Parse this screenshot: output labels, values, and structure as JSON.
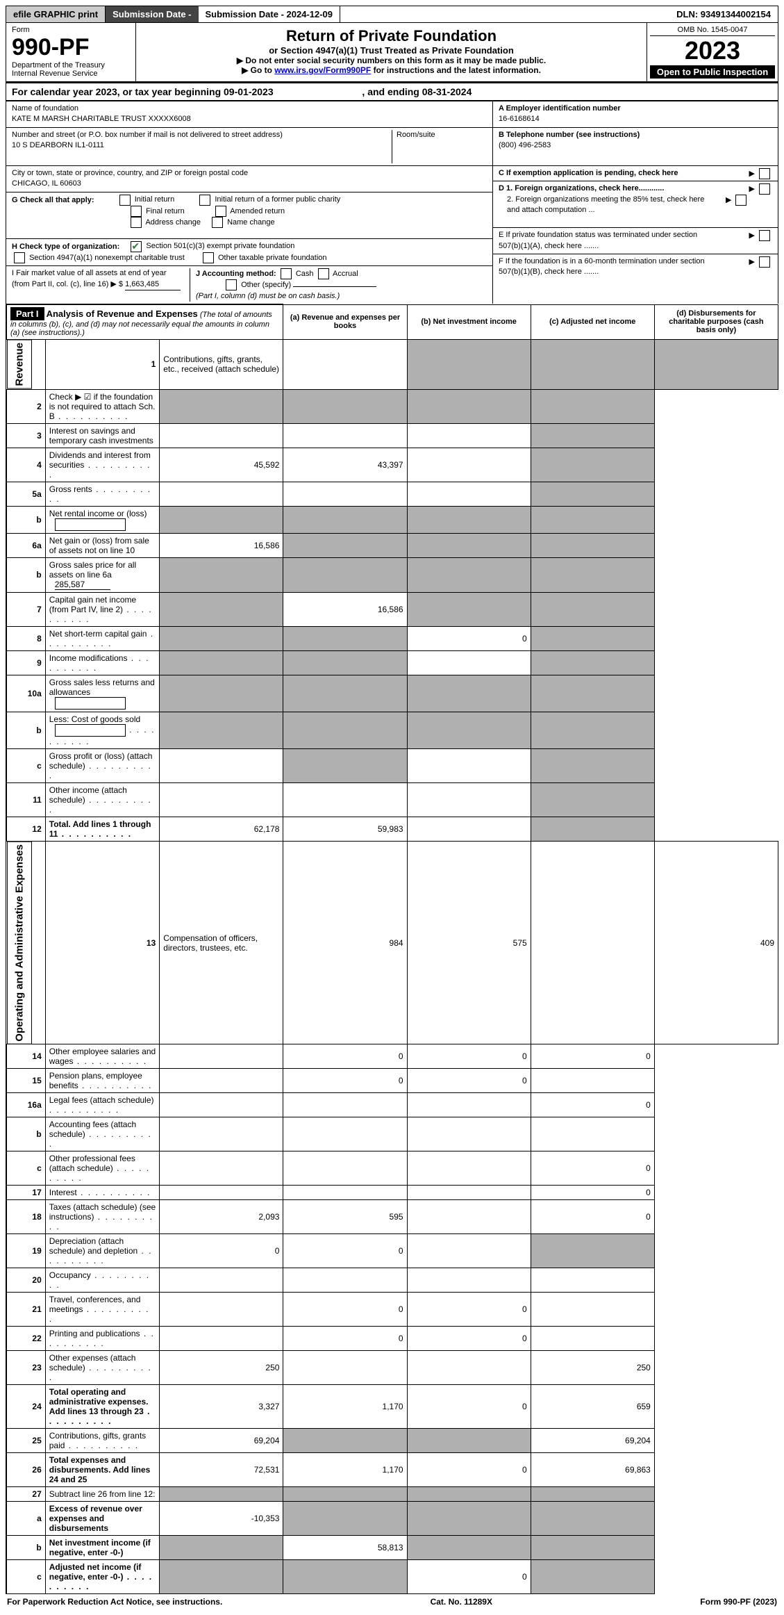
{
  "topbar": {
    "efile": "efile GRAPHIC print",
    "submission_label": "Submission Date - 2024-12-09",
    "dln": "DLN: 93491344002154"
  },
  "header": {
    "form_label": "Form",
    "form_number": "990-PF",
    "dept": "Department of the Treasury",
    "irs": "Internal Revenue Service",
    "title": "Return of Private Foundation",
    "subtitle": "or Section 4947(a)(1) Trust Treated as Private Foundation",
    "instr1": "▶ Do not enter social security numbers on this form as it may be made public.",
    "instr2_pre": "▶ Go to ",
    "instr2_link": "www.irs.gov/Form990PF",
    "instr2_post": " for instructions and the latest information.",
    "omb": "OMB No. 1545-0047",
    "year": "2023",
    "open": "Open to Public Inspection"
  },
  "year_line": {
    "pre": "For calendar year 2023, or tax year beginning 09-01-2023",
    "post": ", and ending 08-31-2024"
  },
  "foundation": {
    "name_label": "Name of foundation",
    "name": "KATE M MARSH CHARITABLE TRUST XXXXX6008",
    "addr_label": "Number and street (or P.O. box number if mail is not delivered to street address)",
    "room_label": "Room/suite",
    "addr": "10 S DEARBORN IL1-0111",
    "city_label": "City or town, state or province, country, and ZIP or foreign postal code",
    "city": "CHICAGO, IL  60603"
  },
  "box_a": {
    "label": "A Employer identification number",
    "value": "16-6168614"
  },
  "box_b": {
    "label": "B Telephone number (see instructions)",
    "value": "(800) 496-2583"
  },
  "box_c": {
    "label": "C If exemption application is pending, check here"
  },
  "box_d1": {
    "label": "D 1. Foreign organizations, check here............"
  },
  "box_d2": {
    "label": "2. Foreign organizations meeting the 85% test, check here and attach computation ..."
  },
  "box_e": {
    "label": "E  If private foundation status was terminated under section 507(b)(1)(A), check here ......."
  },
  "box_f": {
    "label": "F  If the foundation is in a 60-month termination under section 507(b)(1)(B), check here ......."
  },
  "g": {
    "label": "G Check all that apply:",
    "items": [
      "Initial return",
      "Initial return of a former public charity",
      "Final return",
      "Amended return",
      "Address change",
      "Name change"
    ]
  },
  "h": {
    "label": "H Check type of organization:",
    "opt1": "Section 501(c)(3) exempt private foundation",
    "opt2": "Section 4947(a)(1) nonexempt charitable trust",
    "opt3": "Other taxable private foundation"
  },
  "i": {
    "label": "I Fair market value of all assets at end of year (from Part II, col. (c), line 16) ▶ $",
    "value": "1,663,485"
  },
  "j": {
    "label": "J Accounting method:",
    "cash": "Cash",
    "accrual": "Accrual",
    "other": "Other (specify)",
    "note": "(Part I, column (d) must be on cash basis.)"
  },
  "part1": {
    "label": "Part I",
    "title": "Analysis of Revenue and Expenses",
    "note": "(The total of amounts in columns (b), (c), and (d) may not necessarily equal the amounts in column (a) (see instructions).)",
    "col_a": "(a)  Revenue and expenses per books",
    "col_b": "(b)  Net investment income",
    "col_c": "(c)  Adjusted net income",
    "col_d": "(d)  Disbursements for charitable purposes (cash basis only)"
  },
  "sections": {
    "revenue": "Revenue",
    "opex": "Operating and Administrative Expenses"
  },
  "rows": [
    {
      "n": "1",
      "desc": "Contributions, gifts, grants, etc., received (attach schedule)",
      "a": "",
      "b": "shade",
      "c": "shade",
      "d": "shade"
    },
    {
      "n": "2",
      "desc": "Check ▶ ☑ if the foundation is not required to attach Sch. B",
      "dots": true,
      "a": "shade",
      "b": "shade",
      "c": "shade",
      "d": "shade"
    },
    {
      "n": "3",
      "desc": "Interest on savings and temporary cash investments",
      "a": "",
      "b": "",
      "c": "",
      "d": "shade"
    },
    {
      "n": "4",
      "desc": "Dividends and interest from securities",
      "dots": true,
      "a": "45,592",
      "b": "43,397",
      "c": "",
      "d": "shade"
    },
    {
      "n": "5a",
      "desc": "Gross rents",
      "dots": true,
      "a": "",
      "b": "",
      "c": "",
      "d": "shade"
    },
    {
      "n": "b",
      "desc": "Net rental income or (loss)",
      "inline_input": true,
      "a": "shade",
      "b": "shade",
      "c": "shade",
      "d": "shade"
    },
    {
      "n": "6a",
      "desc": "Net gain or (loss) from sale of assets not on line 10",
      "a": "16,586",
      "b": "shade",
      "c": "shade",
      "d": "shade"
    },
    {
      "n": "b",
      "desc": "Gross sales price for all assets on line 6a",
      "inline_val": "285,587",
      "a": "shade",
      "b": "shade",
      "c": "shade",
      "d": "shade"
    },
    {
      "n": "7",
      "desc": "Capital gain net income (from Part IV, line 2)",
      "dots": true,
      "a": "shade",
      "b": "16,586",
      "c": "shade",
      "d": "shade"
    },
    {
      "n": "8",
      "desc": "Net short-term capital gain",
      "dots": true,
      "a": "shade",
      "b": "shade",
      "c": "0",
      "d": "shade"
    },
    {
      "n": "9",
      "desc": "Income modifications",
      "dots": true,
      "a": "shade",
      "b": "shade",
      "c": "",
      "d": "shade"
    },
    {
      "n": "10a",
      "desc": "Gross sales less returns and allowances",
      "inline_input": true,
      "a": "shade",
      "b": "shade",
      "c": "shade",
      "d": "shade"
    },
    {
      "n": "b",
      "desc": "Less: Cost of goods sold",
      "dots": true,
      "inline_input": true,
      "a": "shade",
      "b": "shade",
      "c": "shade",
      "d": "shade"
    },
    {
      "n": "c",
      "desc": "Gross profit or (loss) (attach schedule)",
      "dots": true,
      "a": "",
      "b": "shade",
      "c": "",
      "d": "shade"
    },
    {
      "n": "11",
      "desc": "Other income (attach schedule)",
      "dots": true,
      "a": "",
      "b": "",
      "c": "",
      "d": "shade"
    },
    {
      "n": "12",
      "desc": "Total. Add lines 1 through 11",
      "dots": true,
      "bold": true,
      "a": "62,178",
      "b": "59,983",
      "c": "",
      "d": "shade"
    },
    {
      "n": "13",
      "desc": "Compensation of officers, directors, trustees, etc.",
      "a": "984",
      "b": "575",
      "c": "",
      "d": "409"
    },
    {
      "n": "14",
      "desc": "Other employee salaries and wages",
      "dots": true,
      "a": "",
      "b": "0",
      "c": "0",
      "d": "0"
    },
    {
      "n": "15",
      "desc": "Pension plans, employee benefits",
      "dots": true,
      "a": "",
      "b": "0",
      "c": "0",
      "d": ""
    },
    {
      "n": "16a",
      "desc": "Legal fees (attach schedule)",
      "dots": true,
      "a": "",
      "b": "",
      "c": "",
      "d": "0"
    },
    {
      "n": "b",
      "desc": "Accounting fees (attach schedule)",
      "dots": true,
      "a": "",
      "b": "",
      "c": "",
      "d": ""
    },
    {
      "n": "c",
      "desc": "Other professional fees (attach schedule)",
      "dots": true,
      "a": "",
      "b": "",
      "c": "",
      "d": "0"
    },
    {
      "n": "17",
      "desc": "Interest",
      "dots": true,
      "a": "",
      "b": "",
      "c": "",
      "d": "0"
    },
    {
      "n": "18",
      "desc": "Taxes (attach schedule) (see instructions)",
      "dots": true,
      "a": "2,093",
      "b": "595",
      "c": "",
      "d": "0"
    },
    {
      "n": "19",
      "desc": "Depreciation (attach schedule) and depletion",
      "dots": true,
      "a": "0",
      "b": "0",
      "c": "",
      "d": "shade"
    },
    {
      "n": "20",
      "desc": "Occupancy",
      "dots": true,
      "a": "",
      "b": "",
      "c": "",
      "d": ""
    },
    {
      "n": "21",
      "desc": "Travel, conferences, and meetings",
      "dots": true,
      "a": "",
      "b": "0",
      "c": "0",
      "d": ""
    },
    {
      "n": "22",
      "desc": "Printing and publications",
      "dots": true,
      "a": "",
      "b": "0",
      "c": "0",
      "d": ""
    },
    {
      "n": "23",
      "desc": "Other expenses (attach schedule)",
      "dots": true,
      "a": "250",
      "b": "",
      "c": "",
      "d": "250"
    },
    {
      "n": "24",
      "desc": "Total operating and administrative expenses. Add lines 13 through 23",
      "dots": true,
      "bold": true,
      "a": "3,327",
      "b": "1,170",
      "c": "0",
      "d": "659"
    },
    {
      "n": "25",
      "desc": "Contributions, gifts, grants paid",
      "dots": true,
      "a": "69,204",
      "b": "shade",
      "c": "shade",
      "d": "69,204"
    },
    {
      "n": "26",
      "desc": "Total expenses and disbursements. Add lines 24 and 25",
      "bold": true,
      "a": "72,531",
      "b": "1,170",
      "c": "0",
      "d": "69,863"
    },
    {
      "n": "27",
      "desc": "Subtract line 26 from line 12:",
      "a": "shade",
      "b": "shade",
      "c": "shade",
      "d": "shade"
    },
    {
      "n": "a",
      "desc": "Excess of revenue over expenses and disbursements",
      "bold": true,
      "a": "-10,353",
      "b": "shade",
      "c": "shade",
      "d": "shade"
    },
    {
      "n": "b",
      "desc": "Net investment income (if negative, enter -0-)",
      "bold": true,
      "a": "shade",
      "b": "58,813",
      "c": "shade",
      "d": "shade"
    },
    {
      "n": "c",
      "desc": "Adjusted net income (if negative, enter -0-)",
      "dots": true,
      "bold": true,
      "a": "shade",
      "b": "shade",
      "c": "0",
      "d": "shade"
    }
  ],
  "footer": {
    "left": "For Paperwork Reduction Act Notice, see instructions.",
    "center": "Cat. No. 11289X",
    "right": "Form 990-PF (2023)"
  },
  "colors": {
    "shaded": "#b0b0b0",
    "black": "#000000",
    "check_green": "#2e7d32",
    "link_blue": "#0000cc",
    "topbar_gray": "#cccccc",
    "topbar_dark": "#444444"
  }
}
